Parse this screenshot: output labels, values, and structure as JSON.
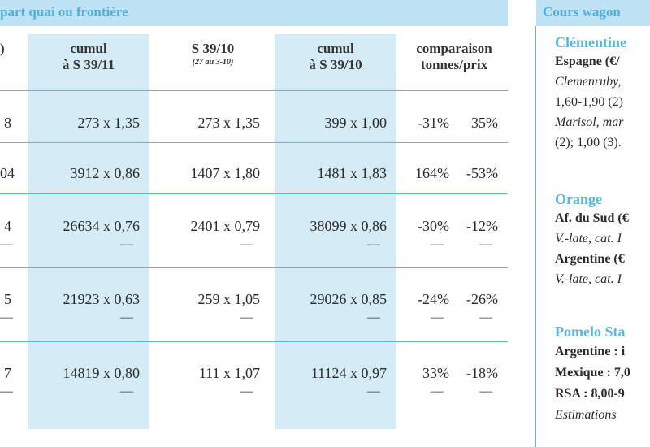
{
  "header": {
    "title": "part quai ou frontière"
  },
  "columns": [
    {
      "line1": "cumul",
      "line2": "à S 39/11",
      "sub": ""
    },
    {
      "line1": "S 39/10",
      "line2": "",
      "sub": "(27 au 3-10)"
    },
    {
      "line1": "cumul",
      "line2": "à S 39/10",
      "sub": ""
    },
    {
      "line1": "comparaison",
      "line2": "tonnes/prix",
      "sub": ""
    }
  ],
  "rows": [
    {
      "edge": "8",
      "c1": "273 x 1,35",
      "c2": "273 x 1,35",
      "c3": "399 x 1,00",
      "pct1": "-31%",
      "pct2": "35%",
      "dash": false
    },
    {
      "edge": "04",
      "c1": "3912 x 0,86",
      "c2": "1407 x 1,80",
      "c3": "1481 x 1,83",
      "pct1": "164%",
      "pct2": "-53%",
      "dash": false
    },
    {
      "edge": "4",
      "c1": "26634 x 0,76",
      "c2": "2401 x 0,79",
      "c3": "38099 x 0,86",
      "pct1": "-30%",
      "pct2": "-12%",
      "dash": true
    },
    {
      "edge": "5",
      "c1": "21923 x 0,63",
      "c2": "259 x 1,05",
      "c3": "29026 x 0,85",
      "pct1": "-24%",
      "pct2": "-26%",
      "dash": true
    },
    {
      "edge": "7",
      "c1": "14819 x 0,80",
      "c2": "111 x 1,07",
      "c3": "11124 x 0,97",
      "pct1": "33%",
      "pct2": "-18%",
      "dash": true
    }
  ],
  "header_edge": ")",
  "dash_glyph": "—",
  "sidebar": {
    "title": "Cours wagon",
    "sections": [
      {
        "heading": "Clémentine",
        "lines": [
          {
            "text": "Espagne (€/",
            "style": "bold"
          },
          {
            "text": "Clemenruby,",
            "style": "italic"
          },
          {
            "text": "1,60-1,90 (2)",
            "style": "normal"
          },
          {
            "text": "Marisol, mar",
            "style": "italic"
          },
          {
            "text": "(2); 1,00 (3).",
            "style": "normal"
          }
        ]
      },
      {
        "heading": "Orange",
        "lines": [
          {
            "text": "Af. du Sud (€",
            "style": "bold"
          },
          {
            "text": "V.-late, cat. I",
            "style": "italic"
          },
          {
            "text": "Argentine (€",
            "style": "bold"
          },
          {
            "text": "V.-late, cat. I",
            "style": "italic"
          }
        ]
      },
      {
        "heading": "Pomelo Sta",
        "lines": [
          {
            "text": "Argentine :  i",
            "style": "bold"
          },
          {
            "text": "Mexique : 7,0",
            "style": "bold"
          },
          {
            "text": "RSA : 8,00-9",
            "style": "bold"
          },
          {
            "text": "Estimations",
            "style": "italic"
          }
        ]
      }
    ]
  }
}
